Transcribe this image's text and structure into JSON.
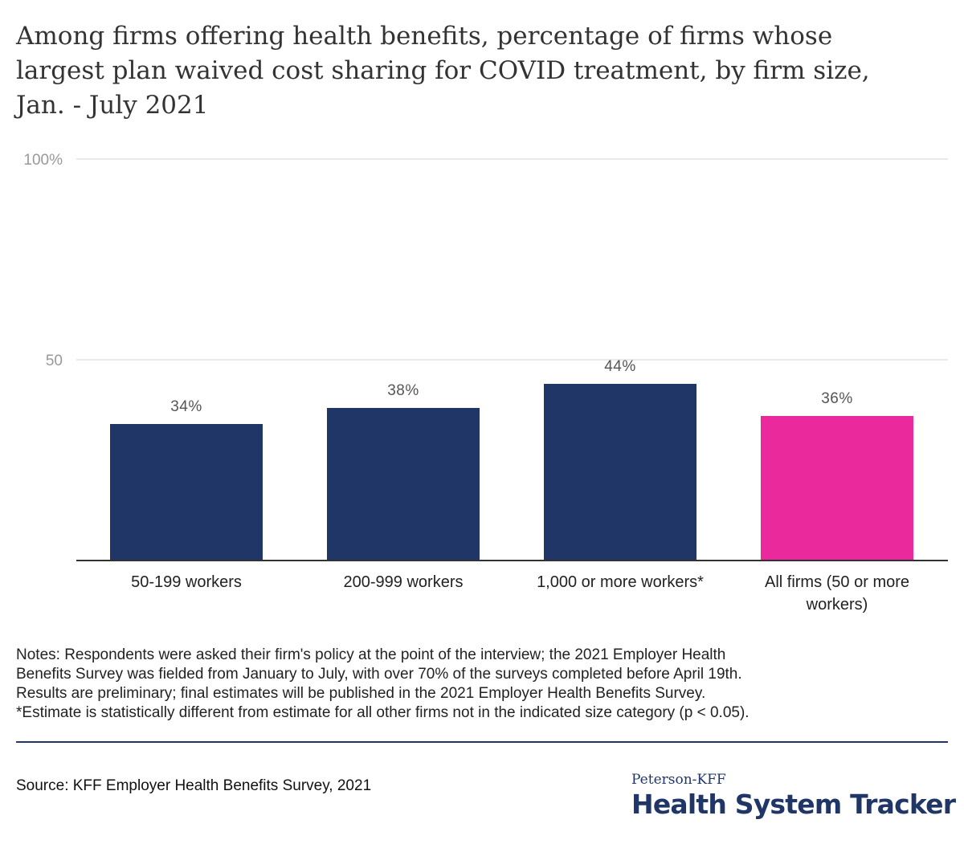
{
  "title_lines": [
    "Among firms offering health benefits, percentage of firms whose",
    "largest plan waived cost sharing for COVID treatment, by firm size,",
    "Jan. - July 2021"
  ],
  "chart_data": {
    "type": "bar",
    "categories": [
      "50-199 workers",
      "200-999 workers",
      "1,000 or more workers*",
      "All firms (50 or more workers)"
    ],
    "category_label_lines": [
      [
        "50-199 workers"
      ],
      [
        "200-999 workers"
      ],
      [
        "1,000 or more workers*"
      ],
      [
        "All firms (50 or more",
        "workers)"
      ]
    ],
    "values": [
      34,
      38,
      44,
      36
    ],
    "data_labels": [
      "34%",
      "38%",
      "44%",
      "36%"
    ],
    "bar_colors": [
      "#1f3667",
      "#1f3667",
      "#1f3667",
      "#ea2a9c"
    ],
    "ylim": [
      0,
      100
    ],
    "yticks": [
      {
        "value": 50,
        "label": "50"
      },
      {
        "value": 100,
        "label": "100%"
      }
    ],
    "grid": true,
    "gridline_color": "#e2e2e2",
    "axis_color": "#333333",
    "tick_label_color": "#999999",
    "data_label_color": "#555555",
    "xlabel": "",
    "ylabel": ""
  },
  "notes_lines": [
    "Notes: Respondents were asked their firm's policy at the point of the interview; the 2021 Employer Health",
    "Benefits Survey was fielded from January to July, with over 70% of the surveys completed before April 19th.",
    "Results are preliminary; final estimates will be published in the 2021 Employer Health Benefits Survey.",
    "*Estimate is statistically different from estimate for all other firms not in the indicated size category (p < 0.05)."
  ],
  "source": "Source: KFF Employer Health Benefits Survey, 2021",
  "logo": {
    "top": "Peterson-KFF",
    "main": "Health System Tracker"
  },
  "colors": {
    "brand_navy": "#1f3667",
    "accent_pink": "#ea2a9c"
  }
}
